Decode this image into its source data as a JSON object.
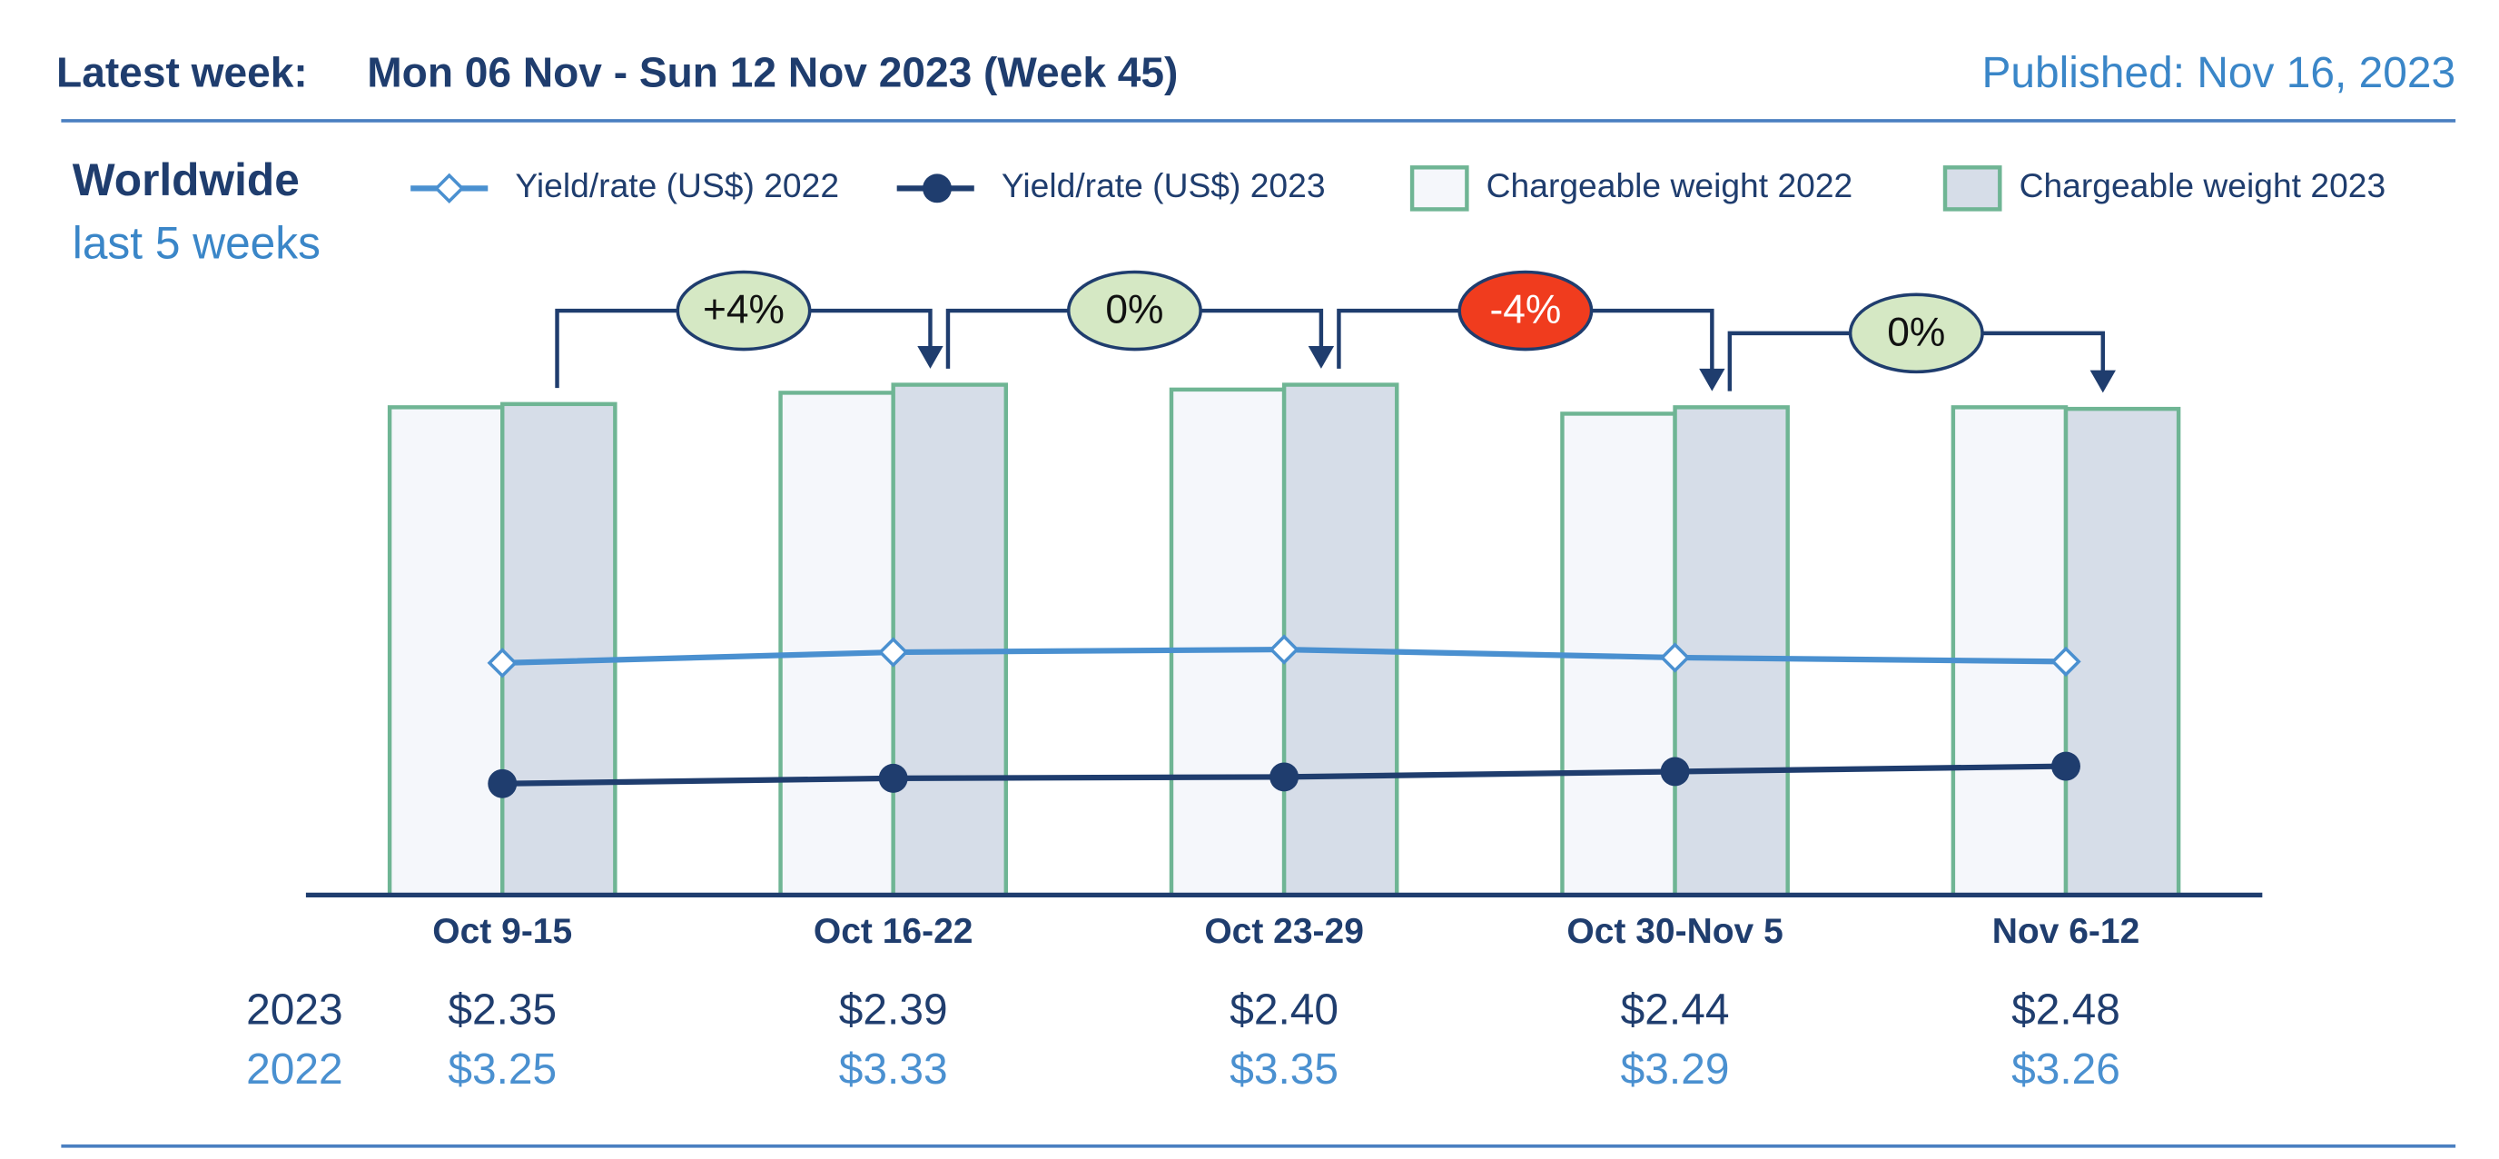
{
  "header": {
    "label": "Latest week:",
    "week": "Mon 06 Nov - Sun 12 Nov 2023 (Week 45)",
    "published": "Published: Nov 16, 2023"
  },
  "chart_data": {
    "type": "bar",
    "title": "Worldwide",
    "subtitle": "last 5 weeks",
    "categories": [
      "Oct 9-15",
      "Oct 16-22",
      "Oct 23-29",
      "Oct 30-Nov 5",
      "Nov 6-12"
    ],
    "ylim": [
      0,
      320
    ],
    "y2lim": [
      1.52,
      5.36
    ],
    "series": [
      {
        "name": "Yield/rate (US$) 2022",
        "type": "line",
        "marker": "diamond",
        "axis": "y2",
        "color": "#4a90d0",
        "values": [
          3.25,
          3.33,
          3.35,
          3.29,
          3.26
        ],
        "value_labels": [
          "$3.25",
          "$3.33",
          "$3.35",
          "$3.29",
          "$3.26"
        ]
      },
      {
        "name": "Yield/rate (US$) 2023",
        "type": "line",
        "marker": "circle",
        "axis": "y2",
        "color": "#1f3d6e",
        "values": [
          2.35,
          2.39,
          2.4,
          2.44,
          2.48
        ],
        "value_labels": [
          "$2.35",
          "$2.39",
          "$2.40",
          "$2.44",
          "$2.48"
        ]
      },
      {
        "name": "Chargeable weight 2022",
        "type": "bar",
        "color": "#f5f7fb",
        "edge_color": "#6fb594",
        "values": [
          303,
          312,
          314,
          299,
          303
        ]
      },
      {
        "name": "Chargeable weight 2023",
        "type": "bar",
        "color": "#d6dde8",
        "edge_color": "#6fb594",
        "values": [
          305,
          317,
          317,
          303,
          302
        ]
      }
    ],
    "row_labels": [
      "2023",
      "2022"
    ],
    "annotations": [
      {
        "text": "+4%",
        "color": "#d5e8c4"
      },
      {
        "text": "0%",
        "color": "#d5e8c4"
      },
      {
        "text": "-4%",
        "color": "#f03c1e"
      },
      {
        "text": "0%",
        "color": "#d5e8c4"
      }
    ]
  }
}
